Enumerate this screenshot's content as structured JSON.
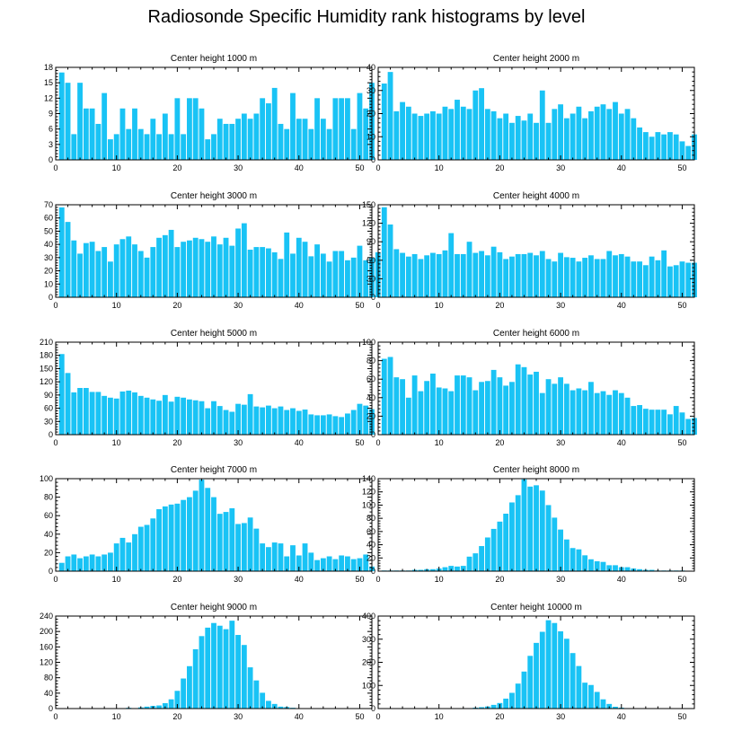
{
  "title": "Radiosonde Specific Humidity rank histograms by level",
  "bar_color": "#19c3f5",
  "chart_data": [
    {
      "type": "bar",
      "title": "Center height 1000 m",
      "xlabel": "",
      "ylabel": "",
      "xlim": [
        0,
        52
      ],
      "ylim": [
        0,
        18
      ],
      "xticks": [
        0,
        10,
        20,
        30,
        40,
        50
      ],
      "yticks": [
        0,
        3,
        6,
        9,
        12,
        15,
        18
      ],
      "values": [
        17,
        15,
        5,
        15,
        10,
        10,
        7,
        13,
        4,
        5,
        10,
        6,
        10,
        6,
        5,
        8,
        5,
        9,
        5,
        12,
        5,
        12,
        12,
        10,
        4,
        5,
        8,
        7,
        7,
        8,
        9,
        8,
        9,
        12,
        11,
        14,
        7,
        6,
        13,
        8,
        8,
        6,
        12,
        8,
        6,
        12,
        12,
        12,
        6,
        13,
        10,
        15
      ]
    },
    {
      "type": "bar",
      "title": "Center height 2000 m",
      "xlabel": "",
      "ylabel": "",
      "xlim": [
        0,
        52
      ],
      "ylim": [
        0,
        40
      ],
      "xticks": [
        0,
        10,
        20,
        30,
        40,
        50
      ],
      "yticks": [
        0,
        10,
        20,
        30,
        40
      ],
      "values": [
        33,
        38,
        21,
        25,
        23,
        20,
        19,
        20,
        21,
        20,
        23,
        22,
        26,
        23,
        22,
        30,
        31,
        22,
        21,
        18,
        20,
        16,
        19,
        17,
        20,
        16,
        30,
        16,
        22,
        24,
        18,
        20,
        23,
        18,
        21,
        23,
        24,
        22,
        25,
        20,
        22,
        18,
        14,
        12,
        10,
        12,
        11,
        12,
        11,
        8,
        6,
        11
      ]
    },
    {
      "type": "bar",
      "title": "Center height 3000 m",
      "xlabel": "",
      "ylabel": "",
      "xlim": [
        0,
        52
      ],
      "ylim": [
        0,
        70
      ],
      "xticks": [
        0,
        10,
        20,
        30,
        40,
        50
      ],
      "yticks": [
        0,
        10,
        20,
        30,
        40,
        50,
        60,
        70
      ],
      "values": [
        68,
        57,
        43,
        33,
        41,
        42,
        35,
        38,
        27,
        40,
        44,
        46,
        40,
        35,
        30,
        38,
        45,
        47,
        51,
        38,
        42,
        43,
        45,
        44,
        42,
        46,
        40,
        45,
        39,
        52,
        56,
        36,
        38,
        38,
        37,
        34,
        29,
        49,
        33,
        45,
        42,
        31,
        40,
        33,
        27,
        35,
        35,
        28,
        30,
        39,
        28,
        30,
        34
      ]
    },
    {
      "type": "bar",
      "title": "Center height 4000 m",
      "xlabel": "",
      "ylabel": "",
      "xlim": [
        0,
        52
      ],
      "ylim": [
        0,
        150
      ],
      "xticks": [
        0,
        10,
        20,
        30,
        40,
        50
      ],
      "yticks": [
        0,
        30,
        60,
        90,
        120,
        150
      ],
      "values": [
        146,
        118,
        78,
        72,
        66,
        70,
        62,
        68,
        72,
        70,
        76,
        104,
        70,
        70,
        90,
        72,
        75,
        68,
        82,
        73,
        62,
        66,
        70,
        70,
        72,
        68,
        75,
        62,
        58,
        72,
        65,
        64,
        58,
        64,
        68,
        62,
        62,
        75,
        68,
        70,
        66,
        58,
        58,
        52,
        66,
        60,
        76,
        50,
        52,
        58,
        56,
        56
      ]
    },
    {
      "type": "bar",
      "title": "Center height 5000 m",
      "xlabel": "",
      "ylabel": "",
      "xlim": [
        0,
        52
      ],
      "ylim": [
        0,
        210
      ],
      "xticks": [
        0,
        10,
        20,
        30,
        40,
        50
      ],
      "yticks": [
        0,
        30,
        60,
        90,
        120,
        150,
        180,
        210
      ],
      "values": [
        183,
        140,
        96,
        106,
        106,
        97,
        97,
        88,
        84,
        82,
        98,
        100,
        96,
        88,
        84,
        80,
        77,
        90,
        75,
        86,
        84,
        80,
        78,
        76,
        60,
        76,
        65,
        56,
        52,
        70,
        68,
        92,
        64,
        62,
        66,
        60,
        64,
        56,
        60,
        54,
        57,
        46,
        44,
        44,
        46,
        42,
        40,
        48,
        56,
        70,
        66,
        58
      ]
    },
    {
      "type": "bar",
      "title": "Center height 6000 m",
      "xlabel": "",
      "ylabel": "",
      "xlim": [
        0,
        52
      ],
      "ylim": [
        0,
        100
      ],
      "xticks": [
        0,
        10,
        20,
        30,
        40,
        50
      ],
      "yticks": [
        0,
        20,
        40,
        60,
        80,
        100
      ],
      "values": [
        82,
        84,
        62,
        60,
        40,
        64,
        47,
        58,
        66,
        51,
        50,
        47,
        64,
        64,
        62,
        48,
        57,
        58,
        70,
        62,
        53,
        57,
        76,
        73,
        65,
        68,
        45,
        60,
        55,
        62,
        55,
        48,
        50,
        48,
        57,
        45,
        47,
        43,
        48,
        45,
        40,
        31,
        32,
        28,
        27,
        27,
        27,
        22,
        31,
        24,
        17,
        18
      ]
    },
    {
      "type": "bar",
      "title": "Center height 7000 m",
      "xlabel": "",
      "ylabel": "",
      "xlim": [
        0,
        52
      ],
      "ylim": [
        0,
        100
      ],
      "xticks": [
        0,
        10,
        20,
        30,
        40,
        50
      ],
      "yticks": [
        0,
        20,
        40,
        60,
        80,
        100
      ],
      "values": [
        9,
        16,
        18,
        14,
        16,
        18,
        16,
        18,
        20,
        30,
        36,
        31,
        40,
        48,
        50,
        57,
        67,
        70,
        72,
        73,
        77,
        80,
        87,
        99,
        90,
        80,
        62,
        64,
        68,
        51,
        52,
        58,
        46,
        30,
        26,
        31,
        30,
        16,
        28,
        17,
        30,
        20,
        12,
        14,
        16,
        13,
        17,
        16,
        13,
        14,
        18,
        5
      ]
    },
    {
      "type": "bar",
      "title": "Center height 8000 m",
      "xlabel": "",
      "ylabel": "",
      "xlim": [
        0,
        52
      ],
      "ylim": [
        0,
        140
      ],
      "xticks": [
        0,
        10,
        20,
        30,
        40,
        50
      ],
      "yticks": [
        0,
        20,
        40,
        60,
        80,
        100,
        120,
        140
      ],
      "values": [
        1,
        1,
        1,
        1,
        1,
        2,
        2,
        3,
        3,
        4,
        6,
        8,
        7,
        8,
        22,
        27,
        38,
        51,
        64,
        75,
        87,
        104,
        115,
        139,
        128,
        130,
        122,
        100,
        81,
        63,
        48,
        35,
        33,
        24,
        18,
        15,
        14,
        9,
        9,
        6,
        6,
        4,
        3,
        2,
        2,
        1,
        1,
        1,
        1,
        1,
        0,
        0
      ]
    },
    {
      "type": "bar",
      "title": "Center height 9000 m",
      "xlabel": "",
      "ylabel": "",
      "xlim": [
        0,
        52
      ],
      "ylim": [
        0,
        240
      ],
      "xticks": [
        0,
        10,
        20,
        30,
        40,
        50
      ],
      "yticks": [
        0,
        40,
        80,
        120,
        160,
        200,
        240
      ],
      "values": [
        0,
        0,
        0,
        0,
        0,
        0,
        1,
        1,
        1,
        1,
        1,
        2,
        1,
        3,
        5,
        7,
        8,
        14,
        24,
        46,
        78,
        110,
        154,
        188,
        210,
        222,
        215,
        206,
        228,
        191,
        165,
        107,
        73,
        41,
        20,
        12,
        5,
        4,
        2,
        1,
        1,
        1,
        0,
        0,
        0,
        0,
        0,
        0,
        0,
        0,
        0,
        0
      ]
    },
    {
      "type": "bar",
      "title": "Center height 10000 m",
      "xlabel": "",
      "ylabel": "",
      "xlim": [
        0,
        52
      ],
      "ylim": [
        0,
        400
      ],
      "xticks": [
        0,
        10,
        20,
        30,
        40,
        50
      ],
      "yticks": [
        0,
        100,
        200,
        300,
        400
      ],
      "values": [
        0,
        0,
        0,
        0,
        0,
        0,
        0,
        0,
        0,
        0,
        1,
        1,
        1,
        1,
        2,
        4,
        6,
        9,
        16,
        24,
        43,
        68,
        108,
        160,
        228,
        284,
        332,
        382,
        370,
        334,
        302,
        240,
        184,
        112,
        102,
        72,
        40,
        20,
        8,
        4,
        2,
        1,
        1,
        0,
        0,
        0,
        0,
        0,
        0,
        0,
        0,
        0
      ]
    }
  ]
}
